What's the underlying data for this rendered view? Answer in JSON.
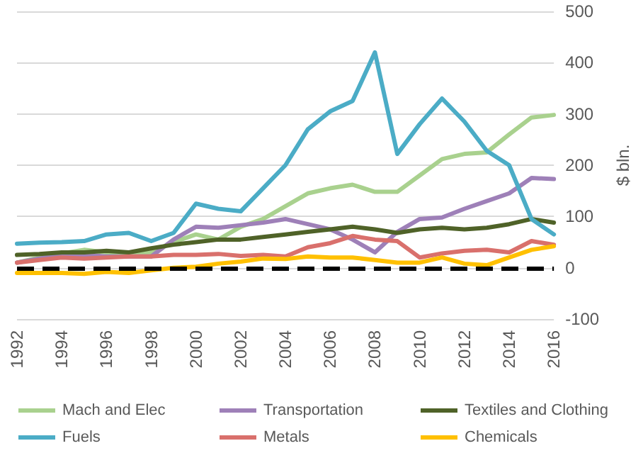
{
  "chart_data": {
    "type": "line",
    "ylabel": "$ bln.",
    "categories": [
      "1992",
      null,
      "1994",
      null,
      "1996",
      null,
      "1998",
      null,
      "2000",
      null,
      "2002",
      null,
      "2004",
      null,
      "2006",
      null,
      "2008",
      null,
      "2010",
      null,
      "2012",
      null,
      "2014",
      null,
      "2016"
    ],
    "series": [
      {
        "name": "Mach and Elec",
        "color": "#a9d18e",
        "values": [
          10,
          20,
          28,
          35,
          30,
          28,
          30,
          50,
          65,
          55,
          80,
          95,
          120,
          145,
          155,
          162,
          148,
          148,
          180,
          212,
          222,
          225,
          260,
          293,
          298
        ]
      },
      {
        "name": "Transportation",
        "color": "#9e80b8",
        "values": [
          10,
          18,
          25,
          25,
          22,
          22,
          22,
          55,
          80,
          78,
          83,
          88,
          95,
          85,
          75,
          55,
          30,
          70,
          95,
          98,
          115,
          130,
          145,
          175,
          173
        ]
      },
      {
        "name": "Textiles and Clothing",
        "color": "#4f6228",
        "values": [
          25,
          27,
          30,
          30,
          33,
          30,
          38,
          45,
          50,
          55,
          55,
          60,
          65,
          70,
          75,
          80,
          75,
          68,
          75,
          78,
          75,
          78,
          85,
          95,
          88
        ]
      },
      {
        "name": "Fuels",
        "color": "#4bacc6",
        "values": [
          47,
          49,
          50,
          52,
          65,
          68,
          52,
          68,
          125,
          115,
          110,
          155,
          200,
          270,
          305,
          325,
          420,
          222,
          280,
          330,
          285,
          228,
          200,
          95,
          65
        ]
      },
      {
        "name": "Metals",
        "color": "#d9706c",
        "values": [
          10,
          15,
          20,
          18,
          20,
          22,
          22,
          25,
          25,
          27,
          23,
          25,
          22,
          40,
          48,
          62,
          55,
          52,
          20,
          28,
          33,
          35,
          30,
          52,
          45
        ]
      },
      {
        "name": "Chemicals",
        "color": "#ffc000",
        "values": [
          -10,
          -10,
          -10,
          -12,
          -8,
          -10,
          -5,
          0,
          2,
          8,
          12,
          18,
          17,
          22,
          20,
          20,
          15,
          10,
          10,
          20,
          8,
          5,
          20,
          35,
          42
        ]
      }
    ],
    "ylim": [
      -100,
      500
    ],
    "yticks": [
      -100,
      0,
      100,
      200,
      300,
      400,
      500
    ],
    "grid": "y",
    "legend": "bottom",
    "marker": "none",
    "line_style": "solid",
    "ref_lines": [
      {
        "axis": "y",
        "value": 0,
        "color": "#000000",
        "line_style": "dashed"
      }
    ]
  }
}
